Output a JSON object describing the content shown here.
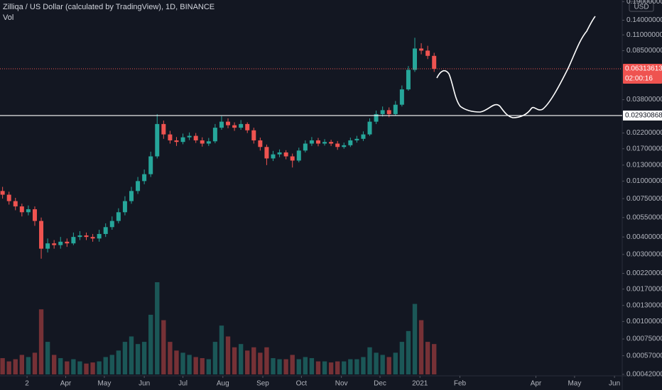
{
  "chart_data": {
    "type": "candlestick",
    "title": "Zilliqa / US Dollar (calculated by TradingView), 1D, BINANCE",
    "volume_label": "Vol",
    "currency": "USD",
    "log_scale": true,
    "up_color": "#26a69a",
    "down_color": "#ef5350",
    "x": [
      "2020-02-12",
      "2020-02-17",
      "2020-02-22",
      "2020-02-27",
      "2020-03-03",
      "2020-03-08",
      "2020-03-13",
      "2020-03-18",
      "2020-03-23",
      "2020-03-28",
      "2020-04-02",
      "2020-04-07",
      "2020-04-12",
      "2020-04-17",
      "2020-04-22",
      "2020-04-27",
      "2020-05-02",
      "2020-05-07",
      "2020-05-12",
      "2020-05-17",
      "2020-05-22",
      "2020-05-27",
      "2020-06-01",
      "2020-06-06",
      "2020-06-11",
      "2020-06-16",
      "2020-06-21",
      "2020-06-26",
      "2020-07-01",
      "2020-07-06",
      "2020-07-11",
      "2020-07-16",
      "2020-07-21",
      "2020-07-26",
      "2020-07-31",
      "2020-08-05",
      "2020-08-10",
      "2020-08-15",
      "2020-08-20",
      "2020-08-25",
      "2020-08-30",
      "2020-09-04",
      "2020-09-09",
      "2020-09-14",
      "2020-09-19",
      "2020-09-24",
      "2020-09-29",
      "2020-10-04",
      "2020-10-09",
      "2020-10-14",
      "2020-10-19",
      "2020-10-24",
      "2020-10-29",
      "2020-11-03",
      "2020-11-08",
      "2020-11-13",
      "2020-11-18",
      "2020-11-23",
      "2020-11-28",
      "2020-12-03",
      "2020-12-08",
      "2020-12-13",
      "2020-12-18",
      "2020-12-23",
      "2020-12-28",
      "2021-01-02",
      "2021-01-07",
      "2021-01-12"
    ],
    "open": [
      0.0085,
      0.008,
      0.0072,
      0.0066,
      0.006,
      0.0063,
      0.0052,
      0.0033,
      0.0036,
      0.0035,
      0.0037,
      0.0036,
      0.004,
      0.0041,
      0.004,
      0.0039,
      0.0042,
      0.0047,
      0.0052,
      0.006,
      0.0072,
      0.0085,
      0.01,
      0.0112,
      0.015,
      0.0255,
      0.0215,
      0.0195,
      0.019,
      0.0205,
      0.021,
      0.0195,
      0.0185,
      0.0192,
      0.024,
      0.0265,
      0.025,
      0.024,
      0.0255,
      0.023,
      0.0195,
      0.0175,
      0.0145,
      0.0155,
      0.016,
      0.015,
      0.014,
      0.0165,
      0.0185,
      0.0195,
      0.0185,
      0.019,
      0.0185,
      0.0175,
      0.018,
      0.0195,
      0.02,
      0.0215,
      0.0265,
      0.03,
      0.032,
      0.03,
      0.035,
      0.045,
      0.062,
      0.088,
      0.085,
      0.078
    ],
    "high": [
      0.0091,
      0.0084,
      0.0076,
      0.0069,
      0.0067,
      0.0066,
      0.0055,
      0.0039,
      0.0038,
      0.004,
      0.0039,
      0.0043,
      0.0044,
      0.0043,
      0.0042,
      0.0045,
      0.005,
      0.0056,
      0.0064,
      0.0078,
      0.0091,
      0.0107,
      0.0121,
      0.0162,
      0.03,
      0.027,
      0.0228,
      0.0206,
      0.0218,
      0.0222,
      0.022,
      0.0205,
      0.0203,
      0.0255,
      0.029,
      0.028,
      0.0262,
      0.0272,
      0.0262,
      0.024,
      0.0204,
      0.0182,
      0.0164,
      0.0168,
      0.0166,
      0.0157,
      0.0173,
      0.0195,
      0.0206,
      0.0203,
      0.0199,
      0.0197,
      0.0193,
      0.0188,
      0.0204,
      0.021,
      0.0226,
      0.028,
      0.0318,
      0.034,
      0.0335,
      0.0372,
      0.048,
      0.066,
      0.105,
      0.096,
      0.092,
      0.082
    ],
    "low": [
      0.0075,
      0.0068,
      0.0062,
      0.0056,
      0.0057,
      0.0048,
      0.0028,
      0.0031,
      0.0033,
      0.0033,
      0.0034,
      0.0035,
      0.0038,
      0.0038,
      0.0037,
      0.0037,
      0.004,
      0.0045,
      0.005,
      0.0057,
      0.0069,
      0.0081,
      0.0095,
      0.0107,
      0.0145,
      0.02,
      0.0185,
      0.0178,
      0.0183,
      0.0196,
      0.0187,
      0.0176,
      0.0178,
      0.0186,
      0.0232,
      0.0238,
      0.0228,
      0.0232,
      0.022,
      0.0185,
      0.0165,
      0.013,
      0.0139,
      0.0148,
      0.0143,
      0.0125,
      0.0136,
      0.016,
      0.0178,
      0.0177,
      0.0179,
      0.0178,
      0.0167,
      0.017,
      0.0175,
      0.0188,
      0.0193,
      0.021,
      0.0255,
      0.0288,
      0.0285,
      0.0292,
      0.034,
      0.044,
      0.06,
      0.08,
      0.074,
      0.06
    ],
    "close": [
      0.008,
      0.0072,
      0.0066,
      0.006,
      0.0063,
      0.0052,
      0.0033,
      0.0036,
      0.0035,
      0.0037,
      0.0036,
      0.004,
      0.0041,
      0.004,
      0.0039,
      0.0042,
      0.0047,
      0.0052,
      0.006,
      0.0072,
      0.0085,
      0.01,
      0.0112,
      0.015,
      0.0255,
      0.0215,
      0.0195,
      0.019,
      0.0205,
      0.021,
      0.0195,
      0.0185,
      0.0192,
      0.024,
      0.0265,
      0.025,
      0.024,
      0.0255,
      0.023,
      0.0195,
      0.0175,
      0.0145,
      0.0155,
      0.016,
      0.015,
      0.014,
      0.0165,
      0.0185,
      0.0195,
      0.0185,
      0.019,
      0.0185,
      0.0175,
      0.018,
      0.0195,
      0.02,
      0.0215,
      0.0265,
      0.03,
      0.032,
      0.03,
      0.035,
      0.045,
      0.062,
      0.088,
      0.085,
      0.078,
      0.0631
    ],
    "volume": [
      15,
      12,
      14,
      18,
      16,
      20,
      60,
      30,
      18,
      15,
      12,
      14,
      12,
      10,
      11,
      12,
      16,
      18,
      22,
      30,
      35,
      28,
      30,
      55,
      85,
      50,
      30,
      22,
      20,
      18,
      16,
      15,
      14,
      30,
      45,
      35,
      25,
      28,
      22,
      25,
      20,
      25,
      15,
      14,
      14,
      18,
      14,
      16,
      15,
      12,
      12,
      11,
      12,
      12,
      14,
      14,
      16,
      25,
      20,
      18,
      16,
      20,
      30,
      40,
      65,
      50,
      30,
      28
    ],
    "ylim": [
      0.00041,
      0.195
    ],
    "yticks": [
      {
        "value": 0.19,
        "label": "0.19000000"
      },
      {
        "value": 0.14,
        "label": "0.14000000"
      },
      {
        "value": 0.11,
        "label": "0.11000000"
      },
      {
        "value": 0.085,
        "label": "0.08500000"
      },
      {
        "value": 0.038,
        "label": "0.03800000"
      },
      {
        "value": 0.022,
        "label": "0.02200000"
      },
      {
        "value": 0.017,
        "label": "0.01700000"
      },
      {
        "value": 0.013,
        "label": "0.01300000"
      },
      {
        "value": 0.01,
        "label": "0.01000000"
      },
      {
        "value": 0.0075,
        "label": "0.00750000"
      },
      {
        "value": 0.0055,
        "label": "0.00550000"
      },
      {
        "value": 0.004,
        "label": "0.00400000"
      },
      {
        "value": 0.003,
        "label": "0.00300000"
      },
      {
        "value": 0.0022,
        "label": "0.00220000"
      },
      {
        "value": 0.0017,
        "label": "0.00170000"
      },
      {
        "value": 0.0013,
        "label": "0.00130000"
      },
      {
        "value": 0.001,
        "label": "0.00100000"
      },
      {
        "value": 0.00075,
        "label": "0.00075000"
      },
      {
        "value": 0.00057,
        "label": "0.00057000"
      },
      {
        "value": 0.00042,
        "label": "0.00042000"
      }
    ],
    "xlim": [
      "2020-02-10",
      "2021-06-07"
    ],
    "xticks": [
      {
        "value": "2020-03-02",
        "label": "2"
      },
      {
        "value": "2020-04-01",
        "label": "Apr"
      },
      {
        "value": "2020-05-01",
        "label": "May"
      },
      {
        "value": "2020-06-01",
        "label": "Jun"
      },
      {
        "value": "2020-07-01",
        "label": "Jul"
      },
      {
        "value": "2020-08-01",
        "label": "Aug"
      },
      {
        "value": "2020-09-01",
        "label": "Sep"
      },
      {
        "value": "2020-10-01",
        "label": "Oct"
      },
      {
        "value": "2020-11-01",
        "label": "Nov"
      },
      {
        "value": "2020-12-01",
        "label": "Dec"
      },
      {
        "value": "2021-01-01",
        "label": "2021"
      },
      {
        "value": "2021-02-01",
        "label": "Feb"
      },
      {
        "value": "2021-04-01",
        "label": "Apr"
      },
      {
        "value": "2021-05-01",
        "label": "May"
      },
      {
        "value": "2021-06-01",
        "label": "Jun"
      }
    ],
    "last_price": 0.06313613,
    "countdown": "02:00:16",
    "horizontal_line": 0.02930868
  }
}
